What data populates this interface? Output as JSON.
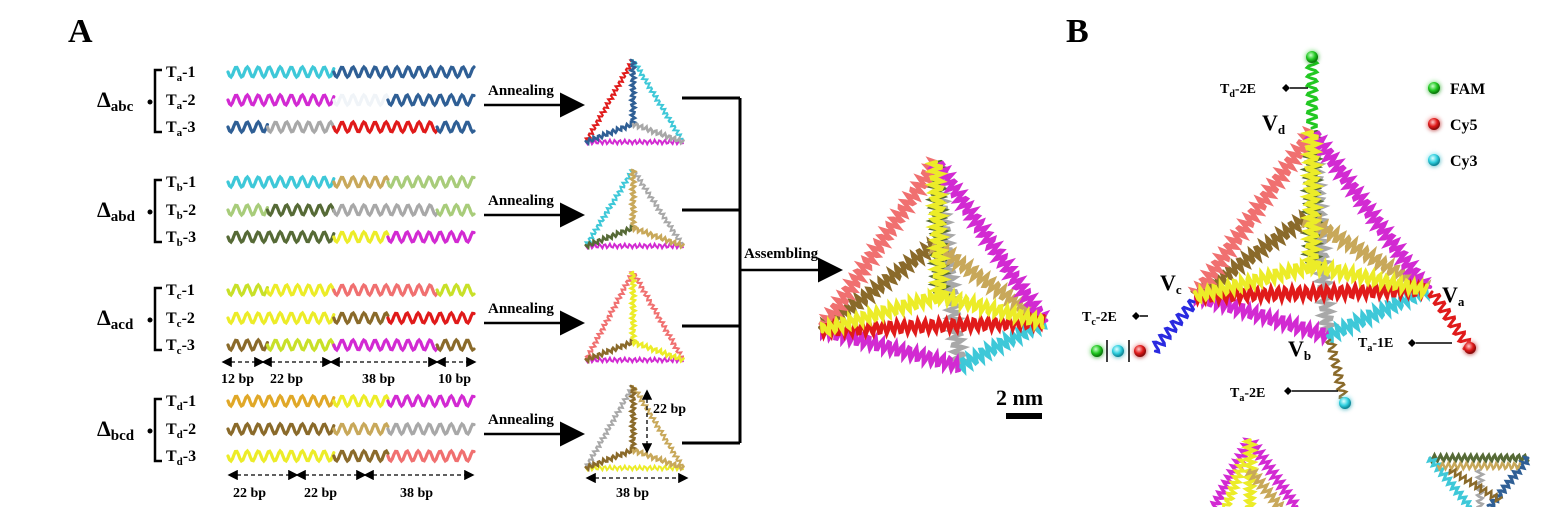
{
  "panels": {
    "a": "A",
    "b": "B"
  },
  "colors": {
    "cyan": "#3ec8d8",
    "navy": "#2f5f95",
    "magenta": "#d22ad2",
    "red": "#e01a1a",
    "gray": "#a8a8a8",
    "olive": "#c8a85a",
    "lightgreen": "#a8cc7a",
    "darkgreen": "#566a36",
    "yellow": "#ecec28",
    "brown": "#8a6a2a",
    "pink": "#f07070",
    "orange": "#e0a828",
    "lime": "#c8e028",
    "green": "#22c822",
    "blue": "#2a2ae0"
  },
  "groups": [
    {
      "delta": "Δ",
      "sub": "abc",
      "arrow": "Annealing",
      "strands": [
        {
          "name": "T",
          "sub": "a",
          "suffix": "-1",
          "segs": [
            "cyan",
            "navy"
          ]
        },
        {
          "name": "T",
          "sub": "a",
          "suffix": "-2",
          "segs": [
            "magenta",
            "white",
            "navy"
          ]
        },
        {
          "name": "T",
          "sub": "a",
          "suffix": "-3",
          "segs": [
            "navy",
            "gray",
            "red",
            "navy"
          ]
        }
      ]
    },
    {
      "delta": "Δ",
      "sub": "abd",
      "arrow": "Annealing",
      "strands": [
        {
          "name": "T",
          "sub": "b",
          "suffix": "-1",
          "segs": [
            "cyan",
            "olive",
            "lightgreen"
          ]
        },
        {
          "name": "T",
          "sub": "b",
          "suffix": "-2",
          "segs": [
            "lightgreen",
            "darkgreen",
            "gray",
            "lightgreen"
          ]
        },
        {
          "name": "T",
          "sub": "b",
          "suffix": "-3",
          "segs": [
            "darkgreen",
            "yellow",
            "magenta"
          ]
        }
      ]
    },
    {
      "delta": "Δ",
      "sub": "acd",
      "arrow": "Annealing",
      "strands": [
        {
          "name": "T",
          "sub": "c",
          "suffix": "-1",
          "segs": [
            "lime",
            "yellow",
            "pink",
            "lime"
          ]
        },
        {
          "name": "T",
          "sub": "c",
          "suffix": "-2",
          "segs": [
            "yellow",
            "brown",
            "red"
          ]
        },
        {
          "name": "T",
          "sub": "c",
          "suffix": "-3",
          "segs": [
            "brown",
            "lime",
            "magenta",
            "brown"
          ]
        }
      ]
    },
    {
      "delta": "Δ",
      "sub": "bcd",
      "arrow": "Annealing",
      "strands": [
        {
          "name": "T",
          "sub": "d",
          "suffix": "-1",
          "segs": [
            "orange",
            "yellow",
            "magenta"
          ]
        },
        {
          "name": "T",
          "sub": "d",
          "suffix": "-2",
          "segs": [
            "brown",
            "olive",
            "gray"
          ]
        },
        {
          "name": "T",
          "sub": "d",
          "suffix": "-3",
          "segs": [
            "yellow",
            "brown",
            "pink"
          ]
        }
      ]
    }
  ],
  "segment_labels_acd": [
    "12 bp",
    "22 bp",
    "38 bp",
    "10 bp"
  ],
  "segment_labels_bcd": [
    "22 bp",
    "22 bp",
    "38 bp"
  ],
  "tri_labels": {
    "height": "22 bp",
    "base": "38 bp"
  },
  "assembling": "Assembling",
  "scale_bar": "2 nm",
  "legend": [
    {
      "label": "FAM",
      "color": "green"
    },
    {
      "label": "Cy5",
      "color": "red"
    },
    {
      "label": "Cy3",
      "color": "cyan"
    }
  ],
  "vertices": {
    "vd": {
      "main": "V",
      "sub": "d"
    },
    "vc": {
      "main": "V",
      "sub": "c"
    },
    "va": {
      "main": "V",
      "sub": "a"
    },
    "vb": {
      "main": "V",
      "sub": "b"
    }
  },
  "linkers": {
    "td": {
      "main": "T",
      "sub": "d",
      "suffix": "-2E"
    },
    "tc": {
      "main": "T",
      "sub": "c",
      "suffix": "-2E"
    },
    "ta1": {
      "main": "T",
      "sub": "a",
      "suffix": "-1E"
    },
    "ta2": {
      "main": "T",
      "sub": "a",
      "suffix": "-2E"
    }
  }
}
